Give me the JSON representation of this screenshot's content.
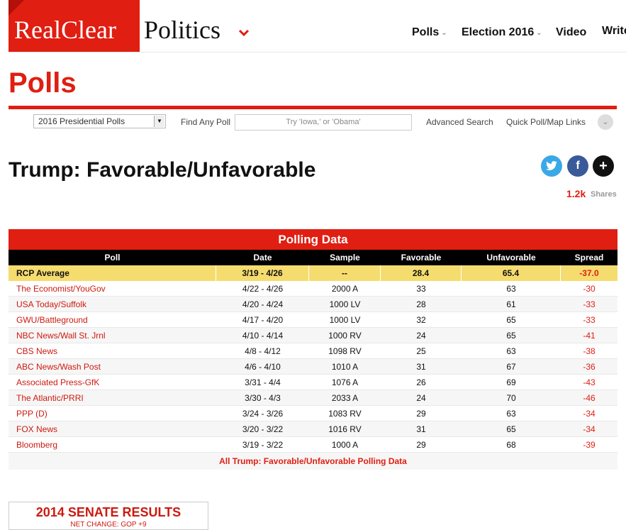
{
  "header": {
    "logo_left": "RealClear",
    "logo_right": "Politics",
    "nav": [
      "Polls",
      "Election 2016",
      "Video",
      "Write"
    ]
  },
  "page": {
    "section_title": "Polls",
    "poll_title": "Trump: Favorable/Unfavorable"
  },
  "toolbar": {
    "select_value": "2016 Presidential Polls",
    "find_label": "Find Any Poll",
    "search_placeholder": "Try 'Iowa,' or 'Obama'",
    "advanced_search": "Advanced Search",
    "quick_links": "Quick Poll/Map Links"
  },
  "share": {
    "count": "1.2k",
    "label": "Shares"
  },
  "table": {
    "title": "Polling Data",
    "columns": [
      "Poll",
      "Date",
      "Sample",
      "Favorable",
      "Unfavorable",
      "Spread"
    ],
    "average": {
      "poll": "RCP Average",
      "date": "3/19 - 4/26",
      "sample": "--",
      "fav": "28.4",
      "unfav": "65.4",
      "spread": "-37.0"
    },
    "rows": [
      {
        "poll": "The Economist/YouGov",
        "date": "4/22 - 4/26",
        "sample": "2000 A",
        "fav": "33",
        "unfav": "63",
        "spread": "-30"
      },
      {
        "poll": "USA Today/Suffolk",
        "date": "4/20 - 4/24",
        "sample": "1000 LV",
        "fav": "28",
        "unfav": "61",
        "spread": "-33"
      },
      {
        "poll": "GWU/Battleground",
        "date": "4/17 - 4/20",
        "sample": "1000 LV",
        "fav": "32",
        "unfav": "65",
        "spread": "-33"
      },
      {
        "poll": "NBC News/Wall St. Jrnl",
        "date": "4/10 - 4/14",
        "sample": "1000 RV",
        "fav": "24",
        "unfav": "65",
        "spread": "-41"
      },
      {
        "poll": "CBS News",
        "date": "4/8 - 4/12",
        "sample": "1098 RV",
        "fav": "25",
        "unfav": "63",
        "spread": "-38"
      },
      {
        "poll": "ABC News/Wash Post",
        "date": "4/6 - 4/10",
        "sample": "1010 A",
        "fav": "31",
        "unfav": "67",
        "spread": "-36"
      },
      {
        "poll": "Associated Press-GfK",
        "date": "3/31 - 4/4",
        "sample": "1076 A",
        "fav": "26",
        "unfav": "69",
        "spread": "-43"
      },
      {
        "poll": "The Atlantic/PRRI",
        "date": "3/30 - 4/3",
        "sample": "2033 A",
        "fav": "24",
        "unfav": "70",
        "spread": "-46"
      },
      {
        "poll": "PPP (D)",
        "date": "3/24 - 3/26",
        "sample": "1083 RV",
        "fav": "29",
        "unfav": "63",
        "spread": "-34"
      },
      {
        "poll": "FOX News",
        "date": "3/20 - 3/22",
        "sample": "1016 RV",
        "fav": "31",
        "unfav": "65",
        "spread": "-34"
      },
      {
        "poll": "Bloomberg",
        "date": "3/19 - 3/22",
        "sample": "1000 A",
        "fav": "29",
        "unfav": "68",
        "spread": "-39"
      }
    ],
    "footer_link": "All Trump: Favorable/Unfavorable Polling Data"
  },
  "senate": {
    "title": "2014 SENATE RESULTS",
    "subtitle": "NET CHANGE: GOP +9"
  },
  "colors": {
    "brand_red": "#e01e12",
    "average_row": "#f5dc6e",
    "twitter": "#3aa8e6",
    "facebook": "#3b5a9a"
  },
  "icons": [
    "chevron-down-icon",
    "twitter-icon",
    "facebook-icon",
    "plus-icon",
    "dropdown-arrow-icon"
  ]
}
